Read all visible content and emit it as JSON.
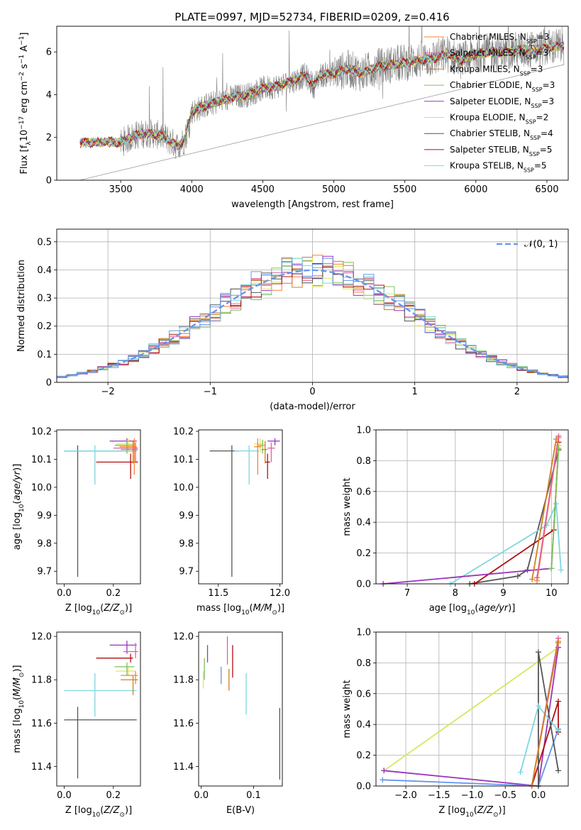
{
  "figure_title": "PLATE=0997, MJD=52734, FIBERID=0209, z=0.416",
  "colors": {
    "Chabrier MILES": "#ff7f2a",
    "Salpeter MILES": "#e060a0",
    "Kroupa MILES": "#d08020",
    "Chabrier ELODIE": "#7fbf5f",
    "Salpeter ELODIE": "#9933bb",
    "Kroupa ELODIE": "#d9e65c",
    "Chabrier STELIB": "#555555",
    "Salpeter STELIB": "#b01010",
    "Kroupa STELIB": "#7fd6e0",
    "data": "#808080",
    "gaussian": "#6495ed",
    "hist_extra": "#6495ed"
  },
  "chart_data": [
    {
      "id": "spectrum",
      "type": "line",
      "title": "PLATE=0997, MJD=52734, FIBERID=0209, z=0.416",
      "xlabel": "wavelength [Angstrom, rest frame]",
      "ylabel": "Flux [f_λ10^-17 erg cm^-2 s^-1 A^-1]",
      "xlim": [
        3050,
        6650
      ],
      "ylim": [
        0,
        7.2
      ],
      "xticks": [
        3500,
        4000,
        4500,
        5000,
        5500,
        6000,
        6500
      ],
      "yticks": [
        0,
        2,
        4,
        6
      ],
      "grid": false,
      "legend_position": "top-right",
      "legend": [
        "Chabrier MILES, N_SSP=3",
        "Salpeter MILES, N_SSP=3",
        "Kroupa MILES, N_SSP=3",
        "Chabrier ELODIE, N_SSP=3",
        "Salpeter ELODIE, N_SSP=3",
        "Kroupa ELODIE, N_SSP=2",
        "Chabrier STELIB, N_SSP=4",
        "Salpeter STELIB, N_SSP=5",
        "Kroupa STELIB, N_SSP=5"
      ],
      "model_continuum": [
        [
          3210,
          1.75
        ],
        [
          3400,
          1.8
        ],
        [
          3500,
          1.75
        ],
        [
          3600,
          2.1
        ],
        [
          3700,
          2.2
        ],
        [
          3800,
          2.05
        ],
        [
          3900,
          1.6
        ],
        [
          3950,
          1.9
        ],
        [
          4000,
          3.2
        ],
        [
          4100,
          3.5
        ],
        [
          4200,
          3.7
        ],
        [
          4300,
          3.9
        ],
        [
          4400,
          4.0
        ],
        [
          4500,
          4.3
        ],
        [
          4600,
          4.4
        ],
        [
          4700,
          4.6
        ],
        [
          4800,
          4.9
        ],
        [
          4860,
          4.4
        ],
        [
          4900,
          4.9
        ],
        [
          5000,
          5.0
        ],
        [
          5100,
          5.2
        ],
        [
          5200,
          5.0
        ],
        [
          5300,
          5.3
        ],
        [
          5400,
          5.4
        ],
        [
          5500,
          5.5
        ],
        [
          5600,
          5.6
        ],
        [
          5700,
          5.7
        ],
        [
          5800,
          5.9
        ],
        [
          5900,
          5.6
        ],
        [
          6000,
          5.9
        ],
        [
          6100,
          6.0
        ],
        [
          6200,
          6.0
        ],
        [
          6300,
          6.1
        ],
        [
          6400,
          6.1
        ],
        [
          6500,
          6.2
        ],
        [
          6620,
          6.3
        ]
      ]
    },
    {
      "id": "residual_hist",
      "type": "histogram",
      "xlabel": "(data-model)/error",
      "ylabel": "Normed distribution",
      "xlim": [
        -2.5,
        2.5
      ],
      "ylim": [
        0,
        0.545
      ],
      "xticks": [
        -2,
        -1,
        0,
        1,
        2
      ],
      "yticks": [
        0.0,
        0.1,
        0.2,
        0.3,
        0.4,
        0.5
      ],
      "grid": true,
      "legend_position": "top-right",
      "legend": [
        "𝒩(0, 1)"
      ],
      "bin_width": 0.1,
      "gaussian": {
        "mean": 0,
        "sigma": 1
      }
    },
    {
      "id": "age_vs_Z",
      "type": "errorbar",
      "xlabel": "Z [log10(Z/Z⊙)]",
      "ylabel": "age  [log10(age/yr)]",
      "xlim": [
        -0.03,
        0.31
      ],
      "ylim": [
        9.655,
        10.205
      ],
      "xticks": [
        0.0,
        0.2
      ],
      "xticklabels": [
        "0.0",
        "0.2"
      ],
      "yticks": [
        9.7,
        9.8,
        9.9,
        10.0,
        10.1,
        10.2
      ],
      "yticklabels": [
        "9.7",
        "9.8",
        "9.9",
        "10.0",
        "10.1",
        "10.2"
      ],
      "points": [
        {
          "series": "Chabrier STELIB",
          "x": 0.055,
          "xerr": [
            0.055,
            0.24
          ],
          "y": 10.13,
          "yerr": [
            0.45,
            0.02
          ]
        },
        {
          "series": "Kroupa STELIB",
          "x": 0.125,
          "xerr": [
            0.125,
            0.17
          ],
          "y": 10.13,
          "yerr": [
            0.12,
            0.02
          ]
        },
        {
          "series": "Salpeter STELIB",
          "x": 0.27,
          "xerr": [
            0.14,
            0.03
          ],
          "y": 10.09,
          "yerr": [
            0.06,
            0.03
          ]
        },
        {
          "series": "Salpeter ELODIE",
          "x": 0.255,
          "xerr": [
            0.07,
            0.04
          ],
          "y": 10.165,
          "yerr": [
            0.015,
            0.01
          ]
        },
        {
          "series": "Kroupa ELODIE",
          "x": 0.26,
          "xerr": [
            0.05,
            0.03
          ],
          "y": 10.155,
          "yerr": [
            0.03,
            0.02
          ]
        },
        {
          "series": "Chabrier ELODIE",
          "x": 0.255,
          "xerr": [
            0.05,
            0.03
          ],
          "y": 10.15,
          "yerr": [
            0.03,
            0.02
          ]
        },
        {
          "series": "Chabrier MILES",
          "x": 0.285,
          "xerr": [
            0.06,
            0.01
          ],
          "y": 10.145,
          "yerr": [
            0.1,
            0.03
          ]
        },
        {
          "series": "Salpeter MILES",
          "x": 0.29,
          "xerr": [
            0.09,
            0.01
          ],
          "y": 10.14,
          "yerr": [
            0.05,
            0.02
          ]
        },
        {
          "series": "Kroupa MILES",
          "x": 0.28,
          "xerr": [
            0.05,
            0.02
          ],
          "y": 10.135,
          "yerr": [
            0.05,
            0.03
          ]
        }
      ]
    },
    {
      "id": "age_vs_mass",
      "type": "errorbar",
      "xlabel": "mass [log10(M/M⊙)]",
      "ylabel": "",
      "xlim": [
        11.34,
        12.02
      ],
      "ylim": [
        9.655,
        10.205
      ],
      "xticks": [
        11.5,
        12.0
      ],
      "xticklabels": [
        "11.5",
        "12.0"
      ],
      "yticks": [
        9.7,
        9.8,
        9.9,
        10.0,
        10.1,
        10.2
      ],
      "yticklabels": [
        "9.7",
        "9.8",
        "9.9",
        "10.0",
        "10.1",
        "10.2"
      ],
      "points": [
        {
          "series": "Chabrier STELIB",
          "x": 11.61,
          "xerr": [
            0.18,
            0.06
          ],
          "y": 10.13,
          "yerr": [
            0.45,
            0.02
          ]
        },
        {
          "series": "Kroupa STELIB",
          "x": 11.75,
          "xerr": [
            0.12,
            0.08
          ],
          "y": 10.13,
          "yerr": [
            0.12,
            0.02
          ]
        },
        {
          "series": "Salpeter STELIB",
          "x": 11.9,
          "xerr": [
            0.02,
            0.02
          ],
          "y": 10.09,
          "yerr": [
            0.06,
            0.03
          ]
        },
        {
          "series": "Salpeter ELODIE",
          "x": 11.96,
          "xerr": [
            0.06,
            0.04
          ],
          "y": 10.165,
          "yerr": [
            0.015,
            0.01
          ]
        },
        {
          "series": "Kroupa ELODIE",
          "x": 11.84,
          "xerr": [
            0.05,
            0.02
          ],
          "y": 10.155,
          "yerr": [
            0.03,
            0.02
          ]
        },
        {
          "series": "Chabrier ELODIE",
          "x": 11.86,
          "xerr": [
            0.04,
            0.02
          ],
          "y": 10.15,
          "yerr": [
            0.03,
            0.02
          ]
        },
        {
          "series": "Chabrier MILES",
          "x": 11.82,
          "xerr": [
            0.03,
            0.03
          ],
          "y": 10.145,
          "yerr": [
            0.1,
            0.03
          ]
        },
        {
          "series": "Salpeter MILES",
          "x": 11.93,
          "xerr": [
            0.03,
            0.03
          ],
          "y": 10.14,
          "yerr": [
            0.05,
            0.02
          ]
        },
        {
          "series": "Kroupa MILES",
          "x": 11.88,
          "xerr": [
            0.03,
            0.02
          ],
          "y": 10.135,
          "yerr": [
            0.05,
            0.03
          ]
        }
      ]
    },
    {
      "id": "mass_weight_vs_age",
      "type": "line",
      "xlabel": "age  [log10(age/yr)]",
      "ylabel": "mass weight",
      "xlim": [
        6.35,
        10.35
      ],
      "ylim": [
        0.0,
        1.0
      ],
      "xticks": [
        7,
        8,
        9,
        10
      ],
      "xticklabels": [
        "7",
        "8",
        "9",
        "10"
      ],
      "yticks": [
        0.0,
        0.2,
        0.4,
        0.6,
        0.8,
        1.0
      ],
      "yticklabels": [
        "0.0",
        "0.2",
        "0.4",
        "0.6",
        "0.8",
        "1.0"
      ],
      "grid": true,
      "series": [
        {
          "series": "Chabrier STELIB",
          "x": [
            8.3,
            9.3,
            9.5,
            10.15
          ],
          "y": [
            0.0,
            0.05,
            0.09,
            0.87
          ]
        },
        {
          "series": "Kroupa STELIB",
          "x": [
            7.9,
            9.9,
            10.1,
            10.2
          ],
          "y": [
            0.0,
            0.38,
            0.52,
            0.09
          ]
        },
        {
          "series": "Salpeter STELIB",
          "x": [
            8.4,
            10.05,
            10.15
          ],
          "y": [
            0.0,
            0.35,
            0.92
          ]
        },
        {
          "series": "Salpeter ELODIE",
          "x": [
            6.5,
            10.0,
            10.15
          ],
          "y": [
            0.0,
            0.1,
            0.9
          ]
        },
        {
          "series": "Kroupa ELODIE",
          "x": [
            10.0,
            10.15
          ],
          "y": [
            0.1,
            0.9
          ]
        },
        {
          "series": "Chabrier ELODIE",
          "x": [
            10.0,
            10.15
          ],
          "y": [
            0.1,
            0.88
          ]
        },
        {
          "series": "Chabrier MILES",
          "x": [
            9.7,
            10.15
          ],
          "y": [
            0.02,
            0.95
          ]
        },
        {
          "series": "Salpeter MILES",
          "x": [
            9.7,
            10.15
          ],
          "y": [
            0.04,
            0.96
          ]
        },
        {
          "series": "Kroupa MILES",
          "x": [
            9.6,
            10.1
          ],
          "y": [
            0.03,
            0.94
          ]
        }
      ]
    },
    {
      "id": "mass_vs_Z",
      "type": "errorbar",
      "xlabel": "Z [log10(Z/Z⊙)]",
      "ylabel": "mass [log10(M/M⊙)]",
      "xlim": [
        -0.03,
        0.31
      ],
      "ylim": [
        11.31,
        12.02
      ],
      "xticks": [
        0.0,
        0.2
      ],
      "xticklabels": [
        "0.0",
        "0.2"
      ],
      "yticks": [
        11.4,
        11.6,
        11.8,
        12.0
      ],
      "yticklabels": [
        "11.4",
        "11.6",
        "11.8",
        "12.0"
      ],
      "points": [
        {
          "series": "Chabrier STELIB",
          "x": 0.055,
          "xerr": [
            0.055,
            0.24
          ],
          "y": 11.615,
          "yerr": [
            0.27,
            0.06
          ]
        },
        {
          "series": "Kroupa STELIB",
          "x": 0.125,
          "xerr": [
            0.125,
            0.17
          ],
          "y": 11.75,
          "yerr": [
            0.12,
            0.08
          ]
        },
        {
          "series": "Salpeter STELIB",
          "x": 0.27,
          "xerr": [
            0.14,
            0.01
          ],
          "y": 11.9,
          "yerr": [
            0.02,
            0.02
          ]
        },
        {
          "series": "Salpeter ELODIE",
          "x": 0.255,
          "xerr": [
            0.07,
            0.04
          ],
          "y": 11.96,
          "yerr": [
            0.04,
            0.02
          ]
        },
        {
          "series": "Kroupa ELODIE",
          "x": 0.26,
          "xerr": [
            0.05,
            0.03
          ],
          "y": 11.84,
          "yerr": [
            0.02,
            0.02
          ]
        },
        {
          "series": "Chabrier ELODIE",
          "x": 0.255,
          "xerr": [
            0.05,
            0.03
          ],
          "y": 11.86,
          "yerr": [
            0.04,
            0.02
          ]
        },
        {
          "series": "Chabrier MILES",
          "x": 0.29,
          "xerr": [
            0.06,
            0.01
          ],
          "y": 11.82,
          "yerr": [
            0.04,
            0.02
          ]
        },
        {
          "series": "Salpeter MILES",
          "x": 0.29,
          "xerr": [
            0.05,
            0.01
          ],
          "y": 11.93,
          "yerr": [
            0.03,
            0.04
          ]
        },
        {
          "series": "Kroupa MILES",
          "x": 0.28,
          "xerr": [
            0.05,
            0.02
          ],
          "y": 11.8,
          "yerr": [
            0.07,
            0.02
          ]
        }
      ]
    },
    {
      "id": "mass_vs_ebv",
      "type": "errorbar",
      "xlabel": "E(B-V)",
      "ylabel": "",
      "xlim": [
        -0.005,
        0.155
      ],
      "ylim": [
        11.31,
        12.02
      ],
      "xticks": [
        0.0,
        0.1
      ],
      "xticklabels": [
        "0.0",
        "0.1"
      ],
      "yticks": [
        11.4,
        11.6,
        11.8,
        12.0
      ],
      "yticklabels": [
        "11.4",
        "11.6",
        "11.8",
        "12.0"
      ],
      "points": [
        {
          "series": "Kroupa ELODIE",
          "x": 0.004,
          "y": 11.8,
          "yerr": [
            0.04,
            0.04
          ]
        },
        {
          "series": "Chabrier ELODIE",
          "x": 0.006,
          "y": 11.84,
          "yerr": [
            0.04,
            0.06
          ]
        },
        {
          "series": "Salpeter ELODIE",
          "x": 0.012,
          "y": 11.93,
          "yerr": [
            0.05,
            0.03
          ]
        },
        {
          "series": "hist_extra",
          "x": 0.038,
          "y": 11.81,
          "yerr": [
            0.03,
            0.05
          ]
        },
        {
          "series": "Salpeter MILES",
          "x": 0.05,
          "y": 11.93,
          "yerr": [
            0.06,
            0.07
          ]
        },
        {
          "series": "Kroupa MILES",
          "x": 0.053,
          "y": 11.82,
          "yerr": [
            0.07,
            0.03
          ]
        },
        {
          "series": "Salpeter STELIB",
          "x": 0.06,
          "y": 11.89,
          "yerr": [
            0.08,
            0.07
          ]
        },
        {
          "series": "Kroupa STELIB",
          "x": 0.086,
          "y": 11.75,
          "yerr": [
            0.11,
            0.08
          ]
        },
        {
          "series": "Chabrier STELIB",
          "x": 0.15,
          "y": 11.49,
          "yerr": [
            0.15,
            0.18
          ]
        }
      ]
    },
    {
      "id": "mass_weight_vs_Z",
      "type": "line",
      "xlabel": "Z [log10(Z/Z⊙)]",
      "ylabel": "mass weight",
      "xlim": [
        -2.45,
        0.45
      ],
      "ylim": [
        0.0,
        1.0
      ],
      "xticks": [
        -2.0,
        -1.5,
        -1.0,
        -0.5,
        0.0
      ],
      "xticklabels": [
        "−2.0",
        "−1.5",
        "−1.0",
        "−0.5",
        "0.0"
      ],
      "yticks": [
        0.0,
        0.2,
        0.4,
        0.6,
        0.8,
        1.0
      ],
      "yticklabels": [
        "0.0",
        "0.2",
        "0.4",
        "0.6",
        "0.8",
        "1.0"
      ],
      "grid": true,
      "series": [
        {
          "series": "Kroupa ELODIE",
          "x": [
            -2.33,
            0.3
          ],
          "y": [
            0.1,
            0.9
          ]
        },
        {
          "series": "Salpeter ELODIE",
          "x": [
            -2.33,
            0.0,
            0.3
          ],
          "y": [
            0.1,
            0.0,
            0.9
          ]
        },
        {
          "series": "hist_extra",
          "x": [
            -2.35,
            0.0,
            0.3
          ],
          "y": [
            0.04,
            0.0,
            0.37
          ]
        },
        {
          "series": "Salpeter STELIB",
          "x": [
            -0.1,
            0.3,
            0.3
          ],
          "y": [
            0.0,
            0.55,
            0.35
          ]
        },
        {
          "series": "Chabrier STELIB",
          "x": [
            0.0,
            0.0,
            0.3
          ],
          "y": [
            0.0,
            0.87,
            0.1
          ]
        },
        {
          "series": "Kroupa STELIB",
          "x": [
            -0.27,
            0.0,
            0.3
          ],
          "y": [
            0.09,
            0.52,
            0.36
          ]
        },
        {
          "series": "Chabrier MILES",
          "x": [
            -0.1,
            0.3
          ],
          "y": [
            0.0,
            0.94
          ]
        },
        {
          "series": "Salpeter MILES",
          "x": [
            -0.1,
            0.3
          ],
          "y": [
            0.0,
            0.96
          ]
        },
        {
          "series": "Kroupa MILES",
          "x": [
            -0.1,
            0.3
          ],
          "y": [
            0.0,
            0.93
          ]
        }
      ]
    }
  ]
}
